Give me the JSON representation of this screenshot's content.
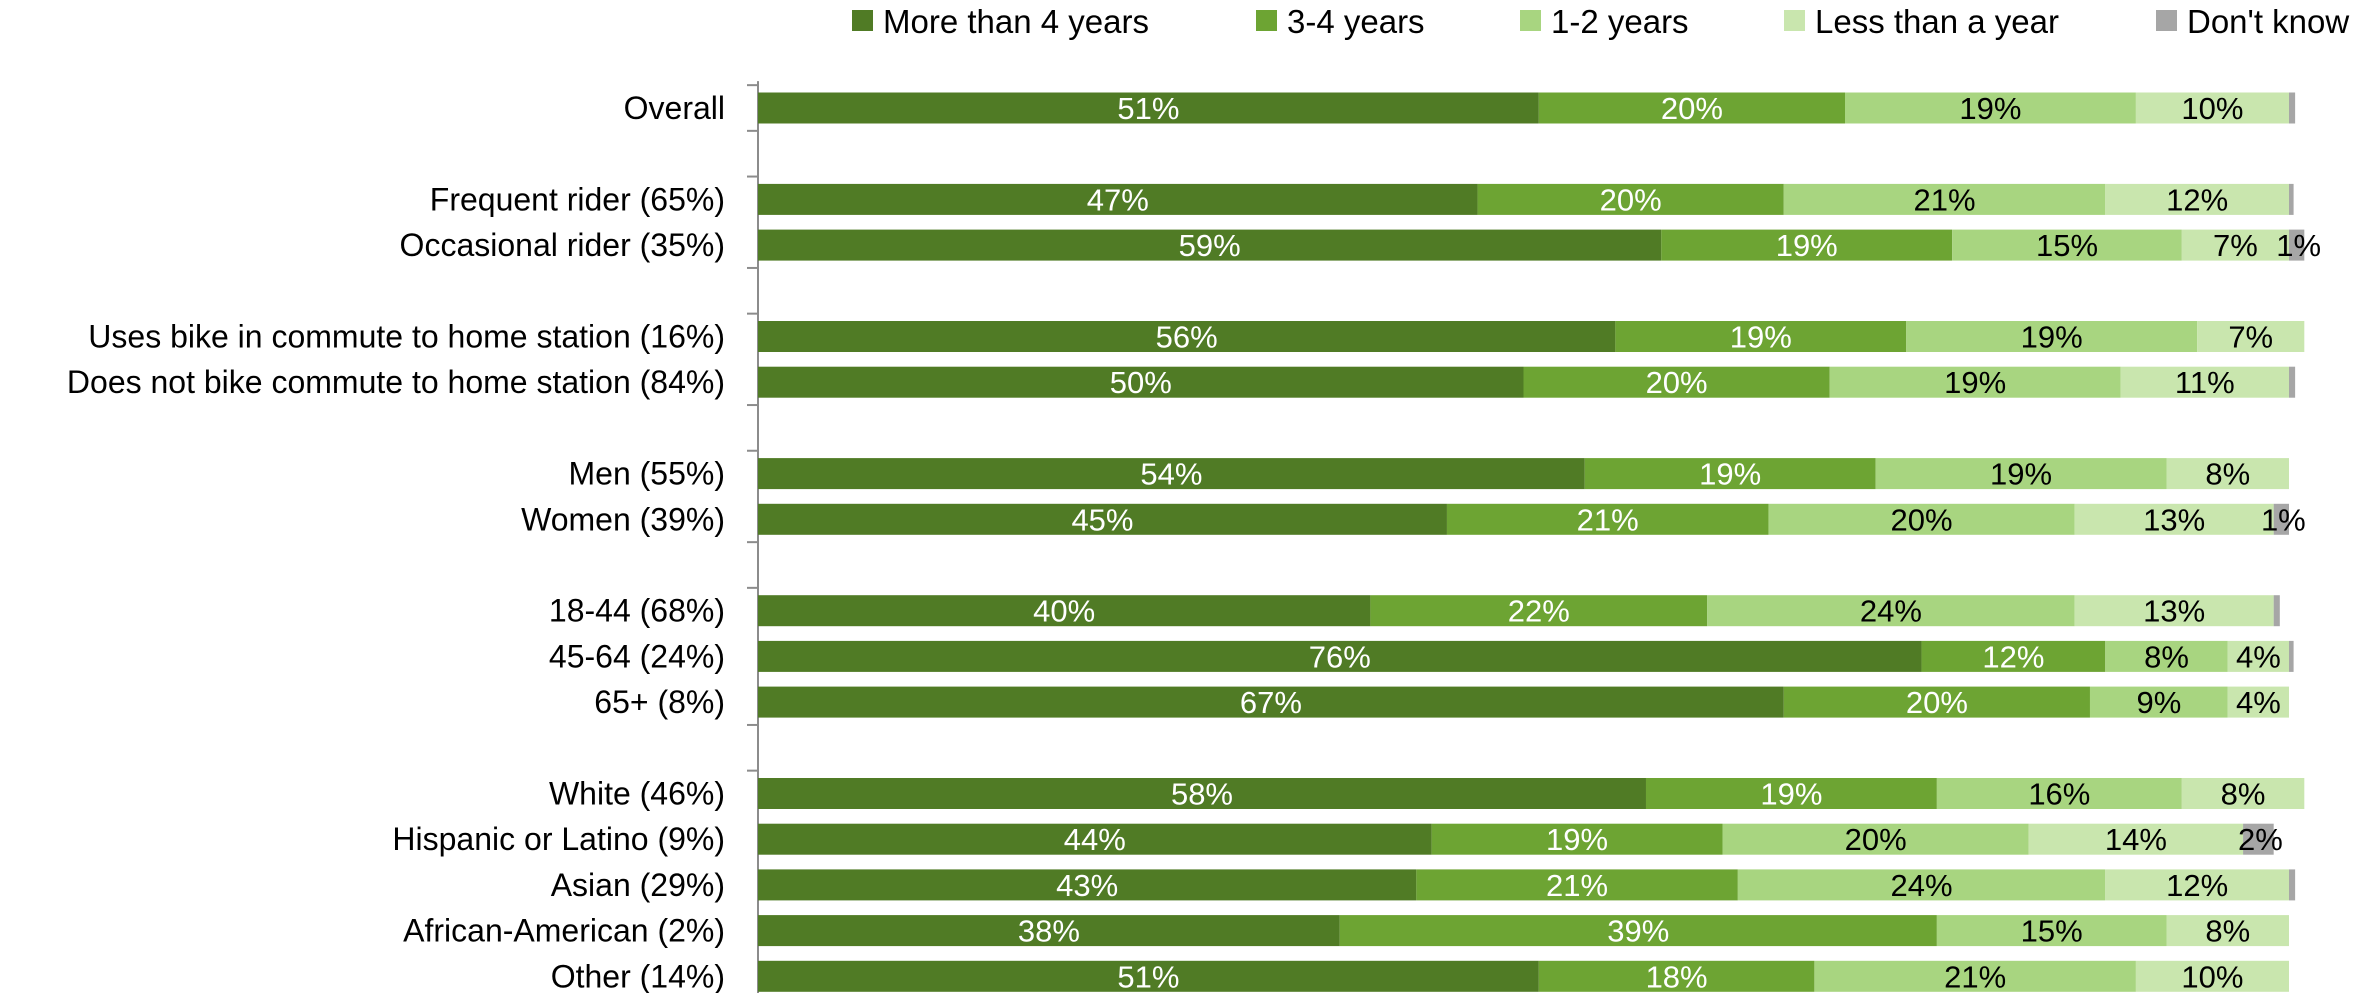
{
  "chart_data": {
    "type": "bar",
    "orientation": "horizontal",
    "stacked": true,
    "normalized": true,
    "legend_position": "top",
    "grid": false,
    "title": "",
    "xlabel": "",
    "ylabel": "",
    "xlim": [
      0,
      100
    ],
    "categories": [
      "Overall",
      "Frequent rider (65%)",
      "Occasional rider (35%)",
      "Uses bike in commute to home station (16%)",
      "Does not bike commute to home station (84%)",
      "Men (55%)",
      "Women (39%)",
      "18-44 (68%)",
      "45-64 (24%)",
      "65+ (8%)",
      "White (46%)",
      "Hispanic or Latino (9%)",
      "Asian (29%)",
      "African-American (2%)",
      "Other (14%)"
    ],
    "category_groups": [
      [
        0
      ],
      [
        1,
        2
      ],
      [
        3,
        4
      ],
      [
        5,
        6
      ],
      [
        7,
        8,
        9
      ],
      [
        10,
        11,
        12,
        13,
        14
      ]
    ],
    "series": [
      {
        "name": "More than 4 years",
        "color": "#507B25",
        "label_color": "#ffffff",
        "values": [
          51,
          47,
          59,
          56,
          50,
          54,
          45,
          40,
          76,
          67,
          58,
          44,
          43,
          38,
          51
        ],
        "labels": [
          "51%",
          "47%",
          "59%",
          "56%",
          "50%",
          "54%",
          "45%",
          "40%",
          "76%",
          "67%",
          "58%",
          "44%",
          "43%",
          "38%",
          "51%"
        ]
      },
      {
        "name": "3-4 years",
        "color": "#6DA433",
        "label_color": "#ffffff",
        "values": [
          20,
          20,
          19,
          19,
          20,
          19,
          21,
          22,
          12,
          20,
          19,
          19,
          21,
          39,
          18
        ],
        "labels": [
          "20%",
          "20%",
          "19%",
          "19%",
          "20%",
          "19%",
          "21%",
          "22%",
          "12%",
          "20%",
          "19%",
          "19%",
          "21%",
          "39%",
          "18%"
        ]
      },
      {
        "name": "1-2 years",
        "color": "#A8D580",
        "label_color": "#000000",
        "values": [
          19,
          21,
          15,
          19,
          19,
          19,
          20,
          24,
          8,
          9,
          16,
          20,
          24,
          15,
          21
        ],
        "labels": [
          "19%",
          "21%",
          "15%",
          "19%",
          "19%",
          "19%",
          "20%",
          "24%",
          "8%",
          "9%",
          "16%",
          "20%",
          "24%",
          "15%",
          "21%"
        ]
      },
      {
        "name": "Less than a year",
        "color": "#C9E6AE",
        "label_color": "#000000",
        "values": [
          10,
          12,
          7,
          7,
          11,
          8,
          13,
          13,
          4,
          4,
          8,
          14,
          12,
          8,
          10
        ],
        "labels": [
          "10%",
          "12%",
          "7%",
          "7%",
          "11%",
          "8%",
          "13%",
          "13%",
          "4%",
          "4%",
          "8%",
          "14%",
          "12%",
          "8%",
          "10%"
        ]
      },
      {
        "name": "Don't know",
        "color": "#A6A6A6",
        "label_color": "#000000",
        "values": [
          0.4,
          0.3,
          1,
          0,
          0.4,
          0,
          1,
          0.4,
          0.3,
          0,
          0,
          2,
          0.4,
          0,
          0
        ],
        "labels": [
          "",
          "",
          "1%",
          "",
          "",
          "",
          "1%",
          "",
          "",
          "",
          "",
          "2%",
          "",
          "",
          ""
        ]
      }
    ]
  }
}
